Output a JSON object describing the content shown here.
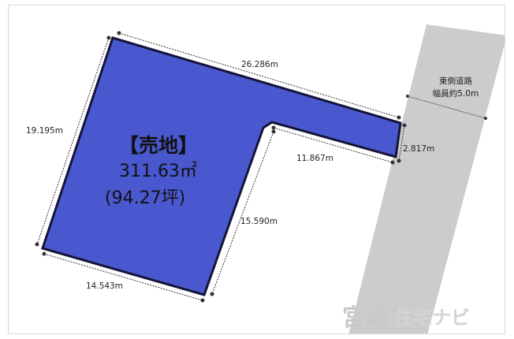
{
  "road": {
    "line1": "東側道路",
    "line2": "幅員約5.0m",
    "fill": "#cccccc"
  },
  "lot": {
    "title": "【売地】",
    "area_sqm": "311.63㎡",
    "area_tsubo": "(94.27坪)",
    "fill": "#4a58cf",
    "outline": "#14143a"
  },
  "dimensions": {
    "top": "26.286m",
    "left": "19.195m",
    "bottom": "14.543m",
    "inner_vertical": "15.590m",
    "inner_horizontal": "11.867m",
    "right_end": "2.817m"
  },
  "watermark": {
    "brand_main": "宮崎",
    "brand_sub": "住宅ナビ"
  }
}
